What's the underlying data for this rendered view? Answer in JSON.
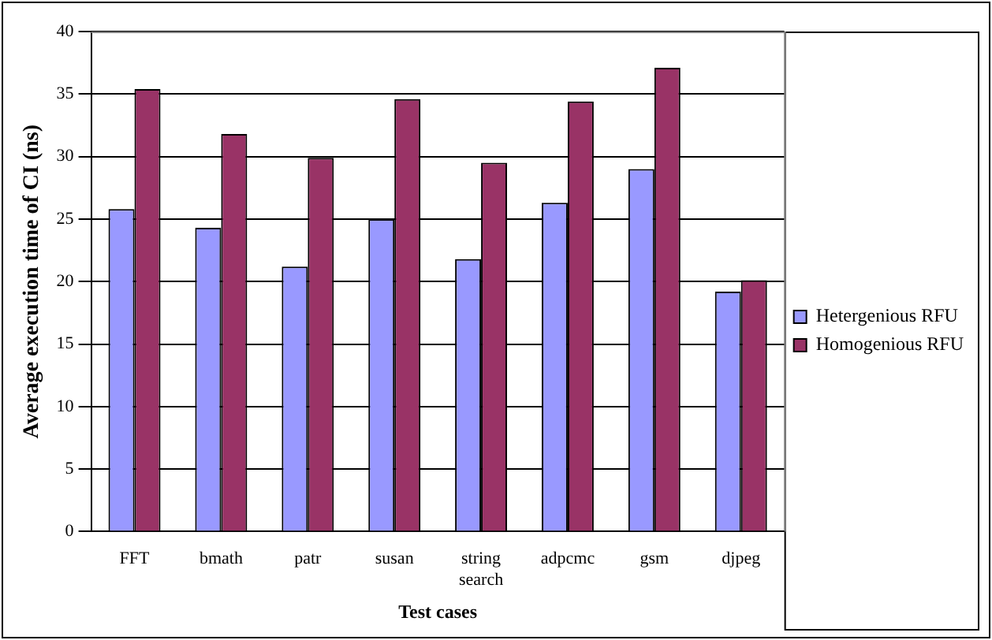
{
  "chart_data": {
    "type": "bar",
    "xlabel": "Test cases",
    "ylabel": "Average execution time of CI (ns)",
    "categories": [
      "FFT",
      "bmath",
      "patr",
      "susan",
      "string search",
      "adpcmc",
      "gsm",
      "djpeg"
    ],
    "series": [
      {
        "name": "Hetergenious RFU",
        "color": "#9999ff",
        "values": [
          25.8,
          24.3,
          21.2,
          25.0,
          21.8,
          26.3,
          29.0,
          19.2
        ]
      },
      {
        "name": "Homogenious RFU",
        "color": "#993366",
        "values": [
          35.4,
          31.8,
          29.9,
          34.6,
          29.5,
          34.4,
          37.1,
          20.1
        ]
      }
    ],
    "ylim": [
      0,
      40
    ],
    "yticks": [
      0,
      5,
      10,
      15,
      20,
      25,
      30,
      35,
      40
    ],
    "grid": "y",
    "legend": "right"
  }
}
